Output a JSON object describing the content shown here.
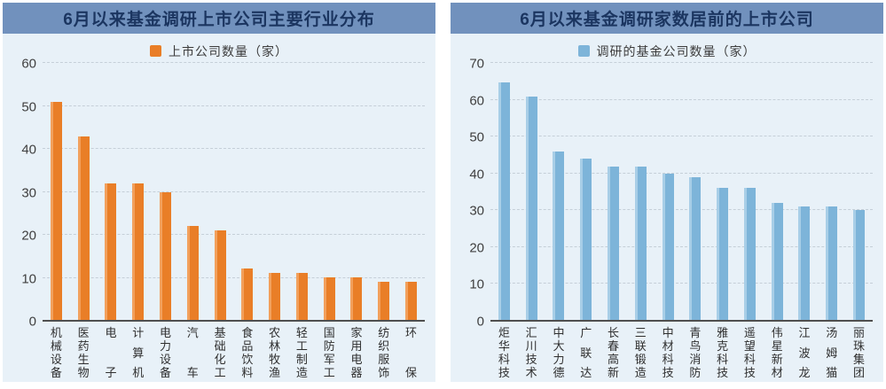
{
  "theme": {
    "header_bg": "#7191BD",
    "header_text_color": "#1B3560",
    "panel_bg": "#E8F1F8",
    "grid_color": "#C5CFD8",
    "axis_line_color": "#4F4F4F",
    "tick_text_color": "#3F3F3F",
    "category_text_color": "#2F2F2F",
    "legend_text_color": "#3C3C3C"
  },
  "chart_data": [
    {
      "type": "bar",
      "title": "6月以来基金调研上市公司主要行业分布",
      "legend_label": "上市公司数量（家）",
      "legend_position": "top",
      "bar_color": "#E97E27",
      "bar_color_light": "#F2A05C",
      "categories": [
        "机械设备",
        "医药生物",
        "电子",
        "计算机",
        "电力设备",
        "汽车",
        "基础化工",
        "食品饮料",
        "农林牧渔",
        "轻工制造",
        "国防军工",
        "家用电器",
        "纺织服饰",
        "环保"
      ],
      "values": [
        51,
        43,
        32,
        32,
        30,
        22,
        21,
        12,
        11,
        11,
        10,
        10,
        9,
        9
      ],
      "xlabel": "",
      "ylabel": "",
      "ylim": [
        0,
        60
      ],
      "ytick_step": 10,
      "grid": "horizontal-dashed"
    },
    {
      "type": "bar",
      "title": "6月以来基金调研家数居前的上市公司",
      "legend_label": "调研的基金公司数量（家）",
      "legend_position": "top",
      "bar_color": "#7DB4D9",
      "bar_color_light": "#A8CEE7",
      "categories": [
        "炬华科技",
        "汇川技术",
        "中大力德",
        "广联达",
        "长春高新",
        "三联锻造",
        "中材科技",
        "青鸟消防",
        "雅克科技",
        "遥望科技",
        "伟星新材",
        "江波龙",
        "汤姆猫",
        "丽珠集团"
      ],
      "values": [
        65,
        61,
        46,
        44,
        42,
        42,
        40,
        39,
        36,
        36,
        32,
        31,
        31,
        30
      ],
      "xlabel": "",
      "ylabel": "",
      "ylim": [
        0,
        70
      ],
      "ytick_step": 10,
      "grid": "horizontal-dashed"
    }
  ]
}
